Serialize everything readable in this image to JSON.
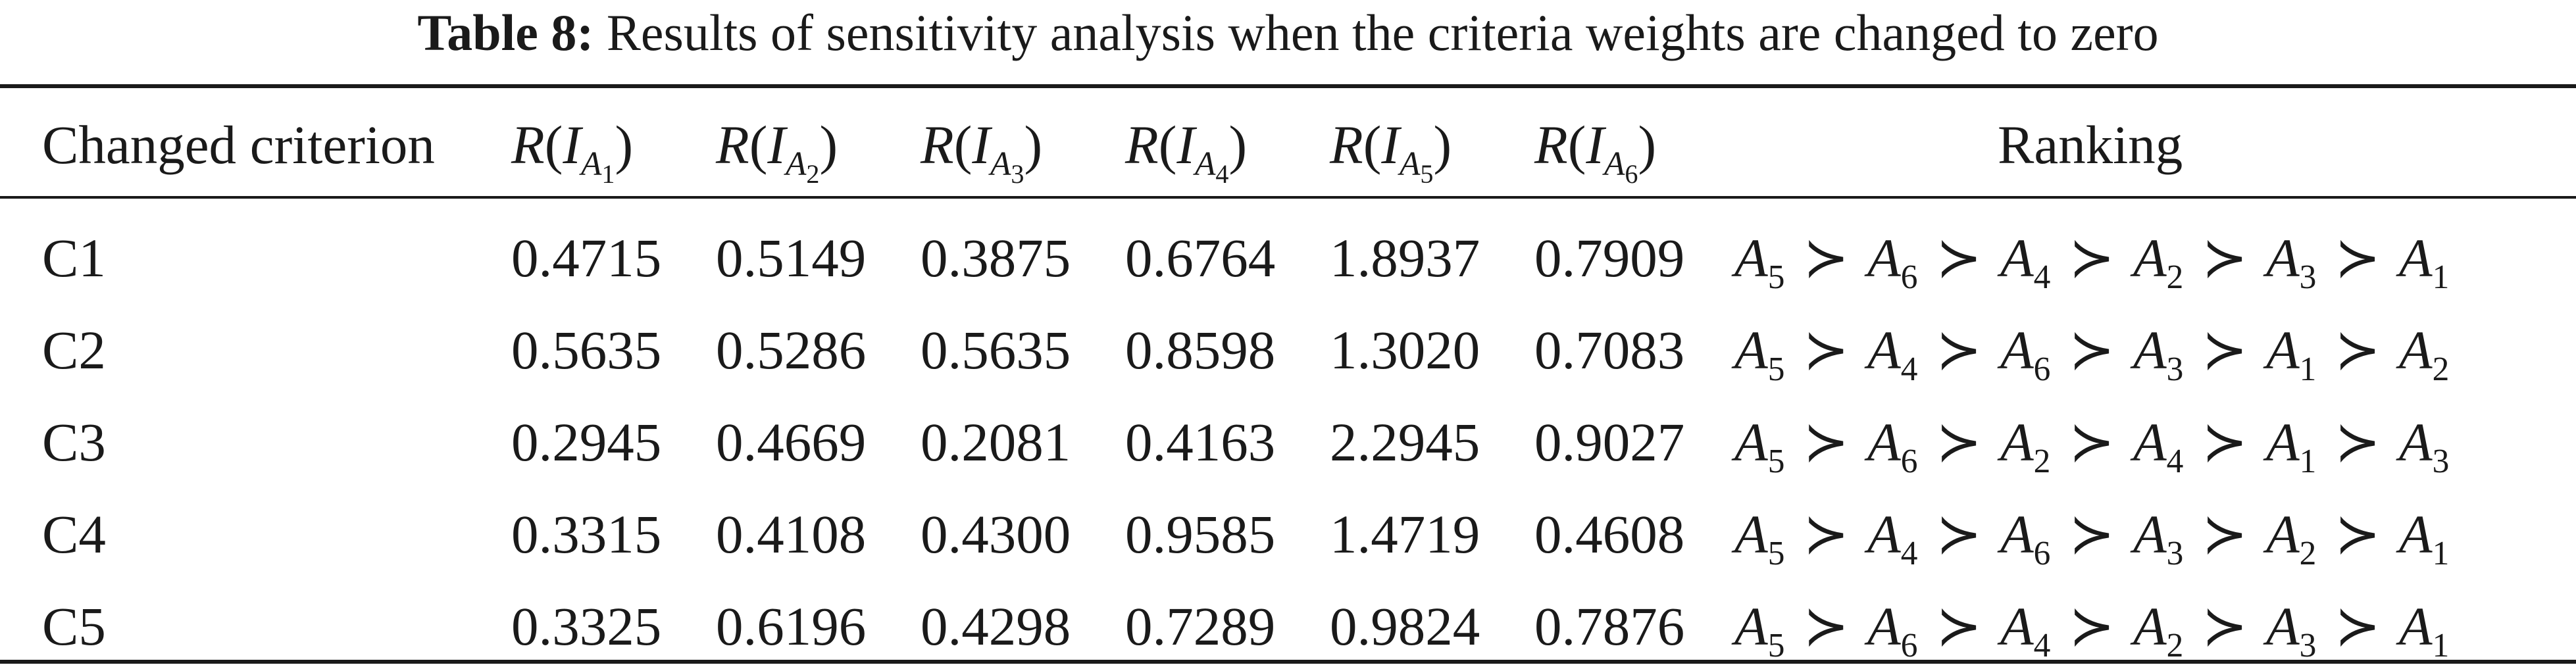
{
  "caption": {
    "label": "Table 8:",
    "text": "Results of sensitivity analysis when the criteria weights are changed to zero"
  },
  "table": {
    "headers": {
      "changed": "Changed criterion",
      "r": [
        "R",
        "R",
        "R",
        "R",
        "R",
        "R"
      ],
      "r_sub_letter": [
        "A",
        "A",
        "A",
        "A",
        "A",
        "A"
      ],
      "r_sub_index": [
        "1",
        "2",
        "3",
        "4",
        "5",
        "6"
      ],
      "ranking": "Ranking"
    },
    "rows": [
      {
        "criterion": "C1",
        "values": [
          "0.4715",
          "0.5149",
          "0.3875",
          "0.6764",
          "1.8937",
          "0.7909"
        ],
        "ranking": [
          "5",
          "6",
          "4",
          "2",
          "3",
          "1"
        ]
      },
      {
        "criterion": "C2",
        "values": [
          "0.5635",
          "0.5286",
          "0.5635",
          "0.8598",
          "1.3020",
          "0.7083"
        ],
        "ranking": [
          "5",
          "4",
          "6",
          "3",
          "1",
          "2"
        ]
      },
      {
        "criterion": "C3",
        "values": [
          "0.2945",
          "0.4669",
          "0.2081",
          "0.4163",
          "2.2945",
          "0.9027"
        ],
        "ranking": [
          "5",
          "6",
          "2",
          "4",
          "1",
          "3"
        ]
      },
      {
        "criterion": "C4",
        "values": [
          "0.3315",
          "0.4108",
          "0.4300",
          "0.9585",
          "1.4719",
          "0.4608"
        ],
        "ranking": [
          "5",
          "4",
          "6",
          "3",
          "2",
          "1"
        ]
      },
      {
        "criterion": "C5",
        "values": [
          "0.3325",
          "0.6196",
          "0.4298",
          "0.7289",
          "0.9824",
          "0.7876"
        ],
        "ranking": [
          "5",
          "6",
          "4",
          "2",
          "3",
          "1"
        ]
      }
    ]
  }
}
